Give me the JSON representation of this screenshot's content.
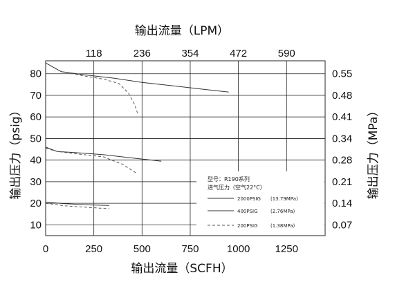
{
  "chart_data": {
    "type": "line",
    "title": "",
    "xlabel_bottom": "输出流量（SCFH）",
    "xlabel_top": "输出流量（LPM）",
    "ylabel_left": "输出压力（psig）",
    "ylabel_right": "输出压力（MPa）",
    "xlim": [
      0,
      1450
    ],
    "ylim": [
      5,
      86
    ],
    "x_ticks_bottom": [
      "0",
      "250",
      "500",
      "750",
      "1000",
      "1250"
    ],
    "x_ticks_bottom_values": [
      0,
      250,
      500,
      750,
      1000,
      1250
    ],
    "x_ticks_top": [
      "118",
      "236",
      "354",
      "472",
      "590"
    ],
    "x_ticks_top_values": [
      250,
      500,
      750,
      1000,
      1250
    ],
    "y_ticks_left": [
      "10",
      "20",
      "30",
      "40",
      "50",
      "60",
      "70",
      "80"
    ],
    "y_ticks_left_values": [
      10,
      20,
      30,
      40,
      50,
      60,
      70,
      80
    ],
    "y_ticks_right": [
      "0.07",
      "0.14",
      "0.21",
      "0.28",
      "0.34",
      "0.41",
      "0.48",
      "0.55"
    ],
    "y_ticks_right_values": [
      10,
      20,
      30,
      40,
      50,
      60,
      70,
      80
    ],
    "grid": true,
    "legend": {
      "position": "bottom-right",
      "title_line1": "型号：R190系列",
      "title_line2": "进气压力（空气22°C）",
      "entries": [
        {
          "label": "2000PSIG",
          "value": "(13.79MPa)",
          "style": "solid"
        },
        {
          "label": "400PSIG",
          "value": "(2.76MPa)",
          "style": "solid"
        },
        {
          "label": "200PSIG",
          "value": "(1.38MPa)",
          "style": "dashed"
        }
      ]
    },
    "series": [
      {
        "style": "solid",
        "x": [
          0,
          80,
          200,
          350,
          500,
          650,
          800,
          950
        ],
        "y": [
          85,
          81,
          79.5,
          78,
          76,
          74.5,
          73,
          71.5
        ]
      },
      {
        "style": "dashed",
        "x": [
          80,
          200,
          300,
          380,
          430,
          460,
          480
        ],
        "y": [
          81,
          79,
          77.5,
          75.5,
          71,
          66,
          61
        ]
      },
      {
        "style": "solid",
        "x": [
          0,
          60,
          150,
          300,
          450,
          600
        ],
        "y": [
          46,
          44,
          43.5,
          42.5,
          41,
          39.5
        ]
      },
      {
        "style": "dashed",
        "x": [
          0,
          60,
          150,
          300,
          400,
          470
        ],
        "y": [
          45.5,
          44,
          43,
          41.5,
          38,
          34
        ]
      },
      {
        "style": "solid",
        "x": [
          0,
          100,
          200,
          330
        ],
        "y": [
          20.5,
          19.8,
          19.3,
          19
        ]
      },
      {
        "style": "dashed",
        "x": [
          0,
          100,
          200,
          330
        ],
        "y": [
          20,
          18.8,
          18.2,
          17.5
        ]
      }
    ]
  }
}
